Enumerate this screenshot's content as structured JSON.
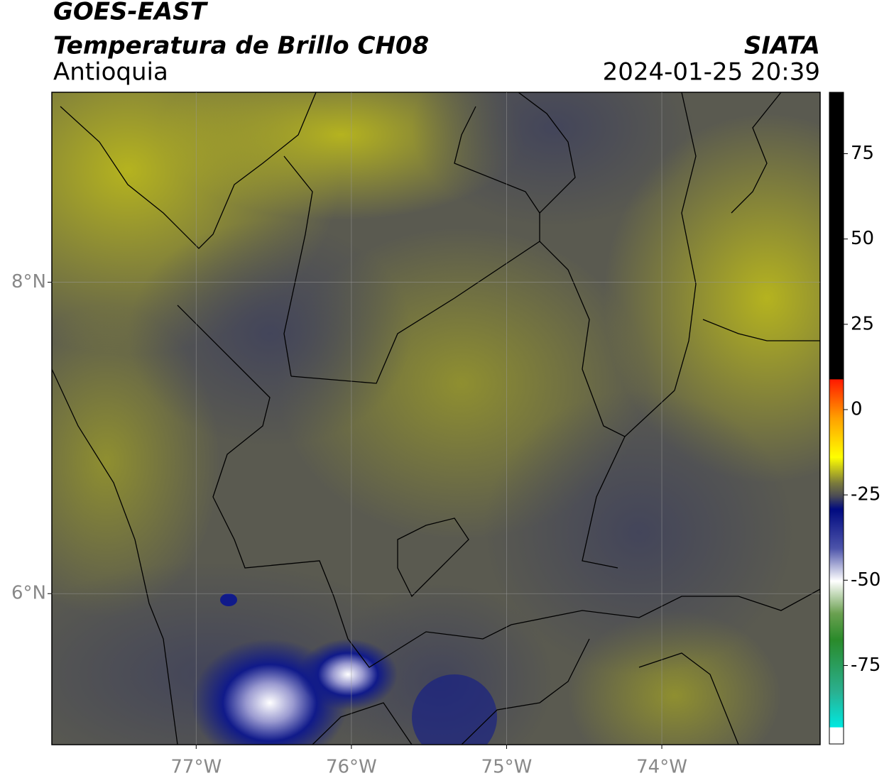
{
  "header": {
    "title": "GOES-EAST",
    "subtitle": "Temperatura de Brillo CH08",
    "region": "Antioquia",
    "source": "SIATA",
    "timestamp": "2024-01-25 20:39"
  },
  "map": {
    "xlim": [
      -77.93,
      -72.98
    ],
    "ylim": [
      5.03,
      9.22
    ],
    "xticks": [
      {
        "value": -77,
        "label": "77°W"
      },
      {
        "value": -76,
        "label": "76°W"
      },
      {
        "value": -75,
        "label": "75°W"
      },
      {
        "value": -74,
        "label": "74°W"
      }
    ],
    "yticks": [
      {
        "value": 8,
        "label": "8°N"
      },
      {
        "value": 6,
        "label": "6°N"
      }
    ],
    "grid": true
  },
  "colorbar": {
    "range": [
      -98,
      93
    ],
    "ticks": [
      75,
      50,
      25,
      0,
      -25,
      -50,
      -75
    ]
  }
}
